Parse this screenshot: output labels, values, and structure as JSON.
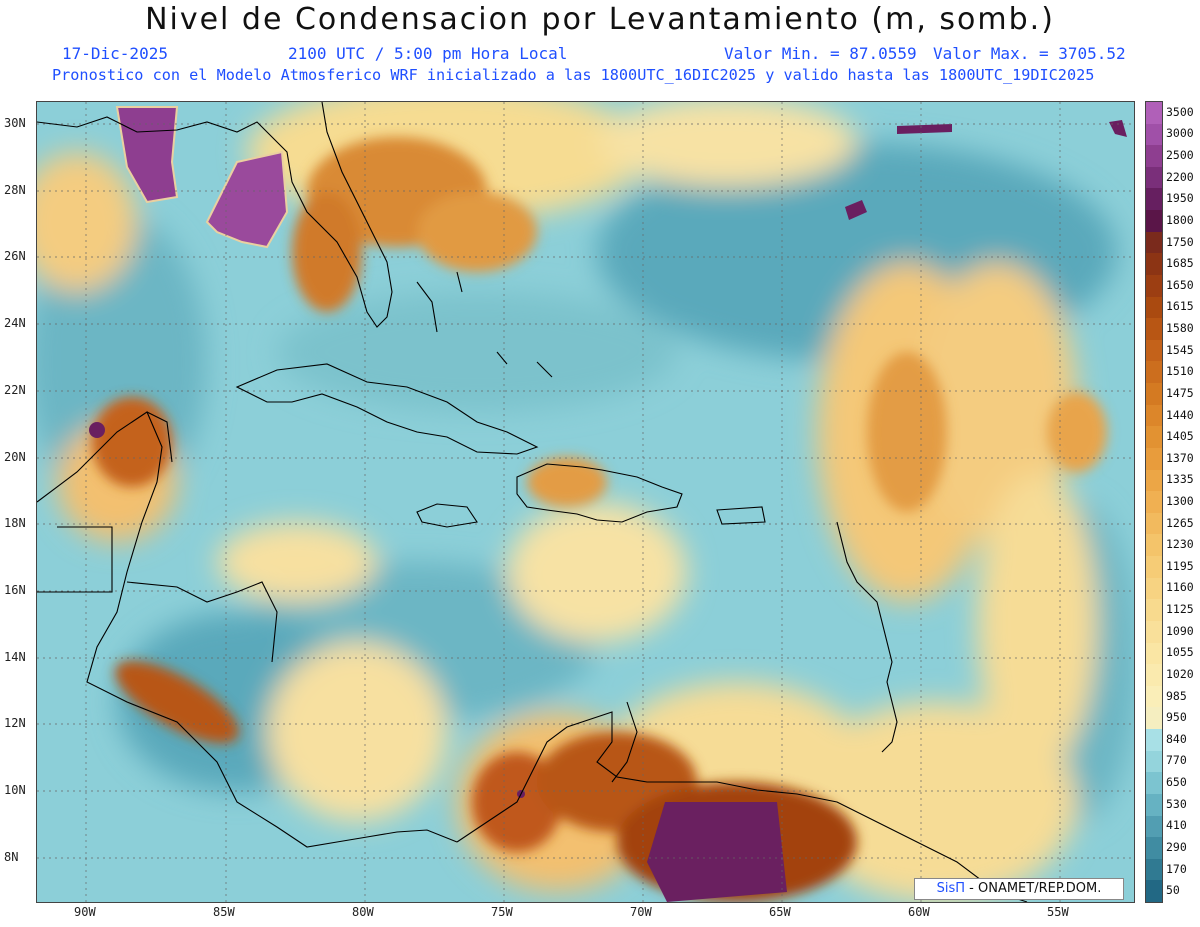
{
  "header": {
    "title": "Nivel de Condensacion por Levantamiento (m, somb.)",
    "date": "17-Dic-2025",
    "time": "2100 UTC / 5:00 pm Hora Local",
    "valmin": "Valor Min. = 87.0559",
    "valmax": "Valor Max. = 3705.52",
    "model_line": "Pronostico con el Modelo Atmosferico WRF inicializado a las 1800UTC_16DIC2025 y valido hasta las  1800UTC_19DIC2025"
  },
  "map": {
    "lat_labels": [
      "30N",
      "28N",
      "26N",
      "24N",
      "22N",
      "20N",
      "18N",
      "16N",
      "14N",
      "12N",
      "10N",
      "8N"
    ],
    "lon_labels": [
      "90W",
      "85W",
      "80W",
      "75W",
      "70W",
      "65W",
      "60W",
      "55W"
    ],
    "variable": "lifting condensation level (m)"
  },
  "colorbar": {
    "levels": [
      "3500",
      "3000",
      "2500",
      "2200",
      "1950",
      "1800",
      "1750",
      "1685",
      "1650",
      "1615",
      "1580",
      "1545",
      "1510",
      "1475",
      "1440",
      "1405",
      "1370",
      "1335",
      "1300",
      "1265",
      "1230",
      "1195",
      "1160",
      "1125",
      "1090",
      "1055",
      "1020",
      "985",
      "950",
      "840",
      "770",
      "650",
      "530",
      "410",
      "290",
      "170",
      "50"
    ],
    "colors": [
      "#b060b8",
      "#a050a8",
      "#8e3e90",
      "#7a2f7a",
      "#661f60",
      "#5a1548",
      "#7a2a1c",
      "#8c3414",
      "#9c3e12",
      "#aa4a10",
      "#b85614",
      "#c4621a",
      "#cc6e1e",
      "#d47a22",
      "#dc862a",
      "#e29232",
      "#e89c3c",
      "#eca646",
      "#f0b052",
      "#f2ba5e",
      "#f4c46a",
      "#f6cc76",
      "#f7d382",
      "#f8da8e",
      "#f9e09a",
      "#fae6a4",
      "#faeaae",
      "#faeeb8",
      "#f5eec0",
      "#a8e0e6",
      "#94d4dc",
      "#7cc4d0",
      "#66b2c2",
      "#529eb2",
      "#408ca2",
      "#307a92",
      "#226884"
    ],
    "brand_a": "SisΠ",
    "brand_b": " - ONAMET/REP.DOM."
  }
}
